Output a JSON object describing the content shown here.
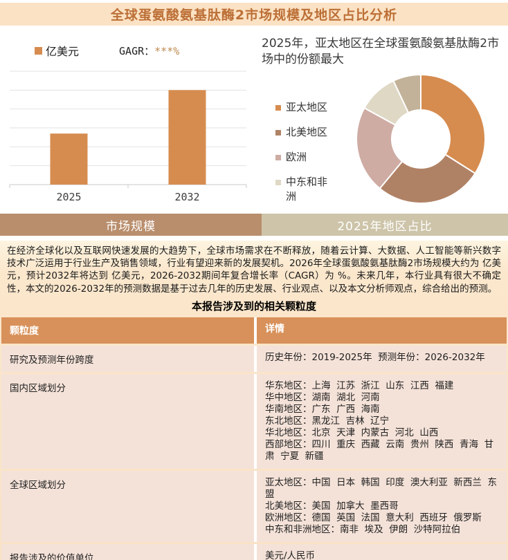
{
  "page": {
    "title": "全球蛋氨酸氨基肽酶2市场规模及地区占比分析"
  },
  "colors": {
    "title_bar_bg": "#FBE2C4",
    "title_text": "#BC6F36",
    "bar_fill": "#D68C4F",
    "tab_left_bg": "#B98E6D",
    "tab_right_bg": "#CDC4A9",
    "table_header_bg": "#D8915A",
    "table_row_bg": "#F4E2D8",
    "masked_value_text": "#BE8950"
  },
  "bar_section": {
    "unit_label": "亿美元",
    "cagr_label": "GAGR：",
    "cagr_value": "***%"
  },
  "tabs": [
    {
      "label": "市场规模"
    },
    {
      "label": "2025年地区占比"
    }
  ],
  "intro_paragraph": "在经济全球化以及互联网快速发展的大趋势下，全球市场需求在不断释放，随着云计算、大数据、人工智能等新兴数字技术广泛运用于行业生产及销售领域，行业有望迎来新的发展契机。2026年全球蛋氨酸氨基肽酶2市场规模大约为 亿美元，预计2032年将达到 亿美元，2026-2032期间年复合增长率（CAGR）为 %。未来几年，本行业具有很大不确定性，本文的2026-2032年的预测数据是基于过去几年的历史发展、行业观点、以及本文分析师观点，综合给出的预测。",
  "table_title": "本报告涉及到的相关颗粒度",
  "table": {
    "headers": [
      "颗粒度",
      "详情"
    ],
    "rows": [
      {
        "label": "研究及预测年份跨度",
        "detail": "历史年份：2019-2025年  预测年份：2026-2032年"
      },
      {
        "label": "国内区域划分",
        "detail": "华东地区：上海  江苏  浙江  山东  江西  福建\n华中地区：湖南  湖北  河南\n华南地区：广东  广西  海南\n东北地区：黑龙江  吉林  辽宁\n华北地区：北京  天津  内蒙古  河北  山西\n西部地区：四川  重庆  西藏  云南  贵州  陕西  青海  甘肃  宁夏  新疆"
      },
      {
        "label": "全球区域划分",
        "detail": "亚太地区：中国  日本  韩国  印度  澳大利亚  新西兰  东盟\n北美地区：美国  加拿大  墨西哥\n欧洲地区：德国  英国  法国  意大利  西班牙  俄罗斯\n中东和非洲地区：南非  埃及  伊朗  沙特阿拉伯"
      },
      {
        "label": "报告涉及的价值单位",
        "detail": "美元/人民币"
      }
    ]
  },
  "chart_data": [
    {
      "type": "bar",
      "title": "",
      "categories": [
        "2025",
        "2032"
      ],
      "values": [
        2.7,
        5
      ],
      "values_are_relative": true,
      "unit": "亿美元",
      "cagr_note": "GAGR：***%",
      "bar_color": "#D68C4F",
      "ylim": [
        0,
        6
      ],
      "gridlines": 7,
      "grid": "on",
      "legend_position": "top-left"
    },
    {
      "type": "pie",
      "subtype": "donut",
      "title": "2025年，亚太地区在全球蛋氨酸氨基肽酶2市场中的份额最大",
      "legend_position": "left",
      "slices": [
        {
          "label": "亚太地区",
          "value": 34,
          "color": "#D68C4F"
        },
        {
          "label": "北美地区",
          "value": 27,
          "color": "#B08265"
        },
        {
          "label": "欧洲",
          "value": 22,
          "color": "#CEACA4"
        },
        {
          "label": "中东和非洲",
          "value": 10,
          "color": "#DFD8C5"
        },
        {
          "label": "",
          "value": 7,
          "color": "#C2B299"
        }
      ]
    }
  ]
}
